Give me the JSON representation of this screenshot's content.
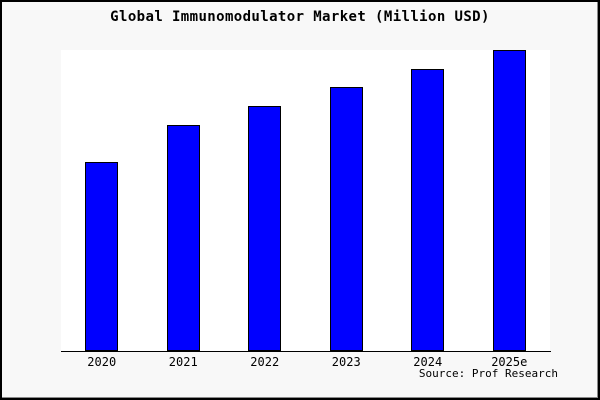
{
  "title": "Global Immunomodulator Market (Million USD)",
  "source_label": "Source: Prof Research",
  "colors": {
    "canvas_background": "#f8f8f8",
    "plot_background": "#ffffff",
    "frame_border": "#000000",
    "bar_fill": "#0000ff",
    "bar_border": "#000000",
    "axis_line": "#000000",
    "text": "#000000"
  },
  "chart_data": {
    "type": "bar",
    "title": "Global Immunomodulator Market (Million USD)",
    "categories": [
      "2020",
      "2021",
      "2022",
      "2023",
      "2024",
      "2025e"
    ],
    "values": [
      189,
      226,
      245,
      264,
      282,
      301
    ],
    "value_scale_note": "y-axis has no tick labels in the image; values are relative bar heights estimated in pixels",
    "ylim": [
      0,
      301
    ],
    "xlabel": "",
    "ylabel": "",
    "grid": false,
    "legend": false,
    "source": "Source: Prof Research"
  }
}
